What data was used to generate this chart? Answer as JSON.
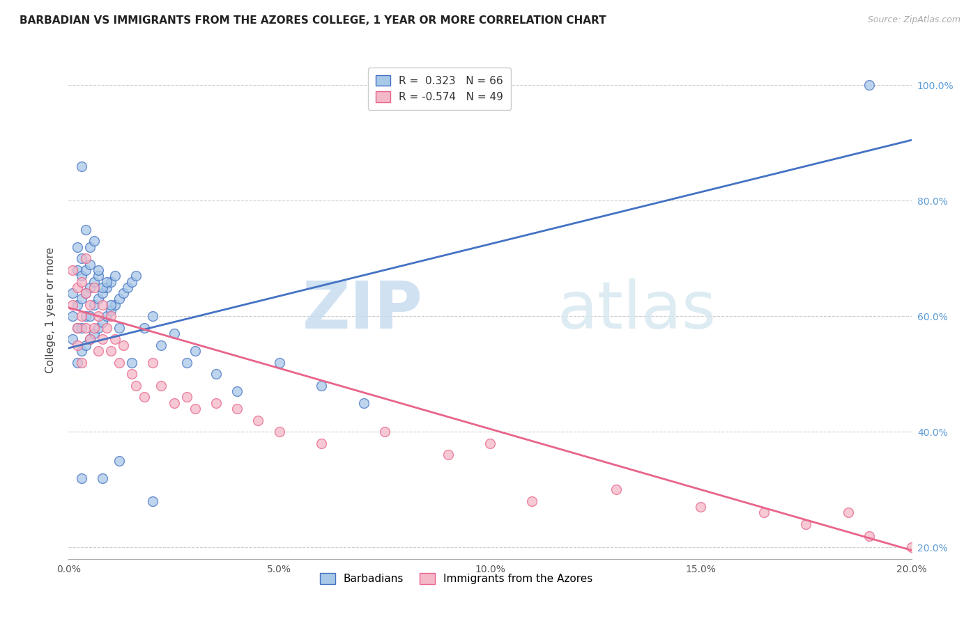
{
  "title": "BARBADIAN VS IMMIGRANTS FROM THE AZORES COLLEGE, 1 YEAR OR MORE CORRELATION CHART",
  "source": "Source: ZipAtlas.com",
  "ylabel": "College, 1 year or more",
  "xmin": 0.0,
  "xmax": 0.2,
  "ymin": 0.18,
  "ymax": 1.04,
  "R_blue": 0.323,
  "N_blue": 66,
  "R_pink": -0.574,
  "N_pink": 49,
  "blue_color": "#A8C8E8",
  "pink_color": "#F4B8C8",
  "blue_line_color": "#4472C4",
  "pink_line_color": "#E8648A",
  "grid_color": "#CCCCCC",
  "watermark_zip": "ZIP",
  "watermark_atlas": "atlas",
  "legend_label_blue": "Barbadians",
  "legend_label_pink": "Immigrants from the Azores",
  "blue_scatter_x": [
    0.001,
    0.001,
    0.001,
    0.002,
    0.002,
    0.002,
    0.002,
    0.002,
    0.003,
    0.003,
    0.003,
    0.003,
    0.003,
    0.004,
    0.004,
    0.004,
    0.004,
    0.005,
    0.005,
    0.005,
    0.005,
    0.006,
    0.006,
    0.006,
    0.007,
    0.007,
    0.007,
    0.008,
    0.008,
    0.009,
    0.009,
    0.01,
    0.01,
    0.011,
    0.011,
    0.012,
    0.013,
    0.014,
    0.015,
    0.016,
    0.018,
    0.02,
    0.022,
    0.025,
    0.028,
    0.03,
    0.035,
    0.04,
    0.05,
    0.06,
    0.07,
    0.003,
    0.004,
    0.005,
    0.006,
    0.007,
    0.008,
    0.009,
    0.01,
    0.012,
    0.015,
    0.19,
    0.003,
    0.008,
    0.012,
    0.02
  ],
  "blue_scatter_y": [
    0.56,
    0.6,
    0.64,
    0.52,
    0.58,
    0.62,
    0.68,
    0.72,
    0.54,
    0.58,
    0.63,
    0.67,
    0.7,
    0.55,
    0.6,
    0.64,
    0.68,
    0.56,
    0.6,
    0.65,
    0.69,
    0.57,
    0.62,
    0.66,
    0.58,
    0.63,
    0.67,
    0.59,
    0.64,
    0.6,
    0.65,
    0.61,
    0.66,
    0.62,
    0.67,
    0.63,
    0.64,
    0.65,
    0.66,
    0.67,
    0.58,
    0.6,
    0.55,
    0.57,
    0.52,
    0.54,
    0.5,
    0.47,
    0.52,
    0.48,
    0.45,
    0.86,
    0.75,
    0.72,
    0.73,
    0.68,
    0.65,
    0.66,
    0.62,
    0.58,
    0.52,
    1.0,
    0.32,
    0.32,
    0.35,
    0.28
  ],
  "pink_scatter_x": [
    0.001,
    0.001,
    0.002,
    0.002,
    0.002,
    0.003,
    0.003,
    0.003,
    0.004,
    0.004,
    0.004,
    0.005,
    0.005,
    0.006,
    0.006,
    0.007,
    0.007,
    0.008,
    0.008,
    0.009,
    0.01,
    0.01,
    0.011,
    0.012,
    0.013,
    0.015,
    0.016,
    0.018,
    0.02,
    0.022,
    0.025,
    0.028,
    0.03,
    0.035,
    0.04,
    0.045,
    0.05,
    0.06,
    0.075,
    0.09,
    0.1,
    0.11,
    0.13,
    0.15,
    0.165,
    0.175,
    0.185,
    0.19,
    0.2
  ],
  "pink_scatter_y": [
    0.62,
    0.68,
    0.58,
    0.65,
    0.55,
    0.6,
    0.66,
    0.52,
    0.58,
    0.64,
    0.7,
    0.56,
    0.62,
    0.58,
    0.65,
    0.54,
    0.6,
    0.56,
    0.62,
    0.58,
    0.54,
    0.6,
    0.56,
    0.52,
    0.55,
    0.5,
    0.48,
    0.46,
    0.52,
    0.48,
    0.45,
    0.46,
    0.44,
    0.45,
    0.44,
    0.42,
    0.4,
    0.38,
    0.4,
    0.36,
    0.38,
    0.28,
    0.3,
    0.27,
    0.26,
    0.24,
    0.26,
    0.22,
    0.2
  ]
}
